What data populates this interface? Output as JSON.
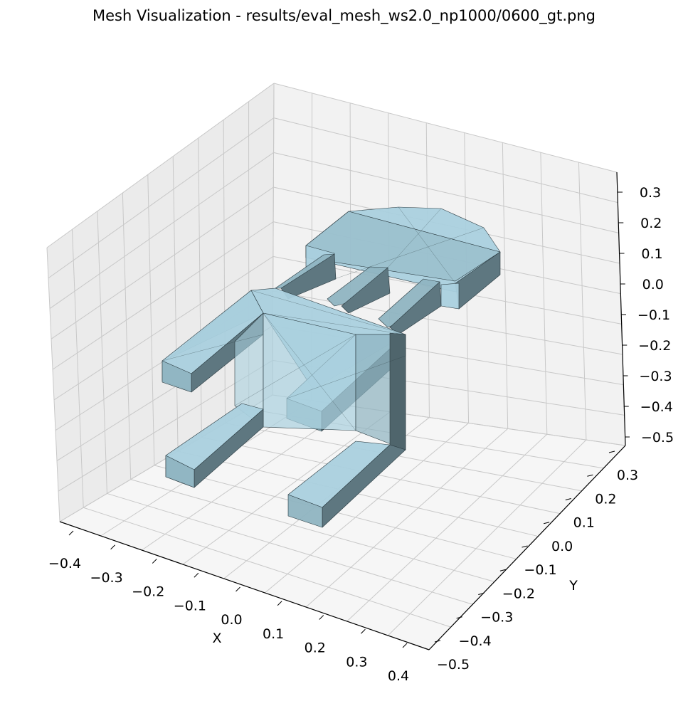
{
  "chart_data": {
    "type": "mesh3d",
    "title": "Mesh Visualization - results/eval_mesh_ws2.0_np1000/0600_gt.png",
    "xlabel": "X",
    "ylabel": "Y",
    "zlabel": "",
    "xticks": [
      "−0.4",
      "−0.3",
      "−0.2",
      "−0.1",
      "0.0",
      "0.1",
      "0.2",
      "0.3",
      "0.4"
    ],
    "yticks": [
      "−0.5",
      "−0.4",
      "−0.3",
      "−0.2",
      "−0.1",
      "0.0",
      "0.1",
      "0.2",
      "0.3"
    ],
    "zticks": [
      "−0.5",
      "−0.4",
      "−0.3",
      "−0.2",
      "−0.1",
      "0.0",
      "0.1",
      "0.2",
      "0.3"
    ],
    "grid": true,
    "colors": {
      "mesh_face": "#9cc5d4",
      "mesh_edge": "#2a3a40",
      "pane_back": "#f2f2f2",
      "pane_left": "#ebebeb",
      "pane_floor": "#f6f6f6",
      "grid": "#c8c8c8"
    }
  }
}
